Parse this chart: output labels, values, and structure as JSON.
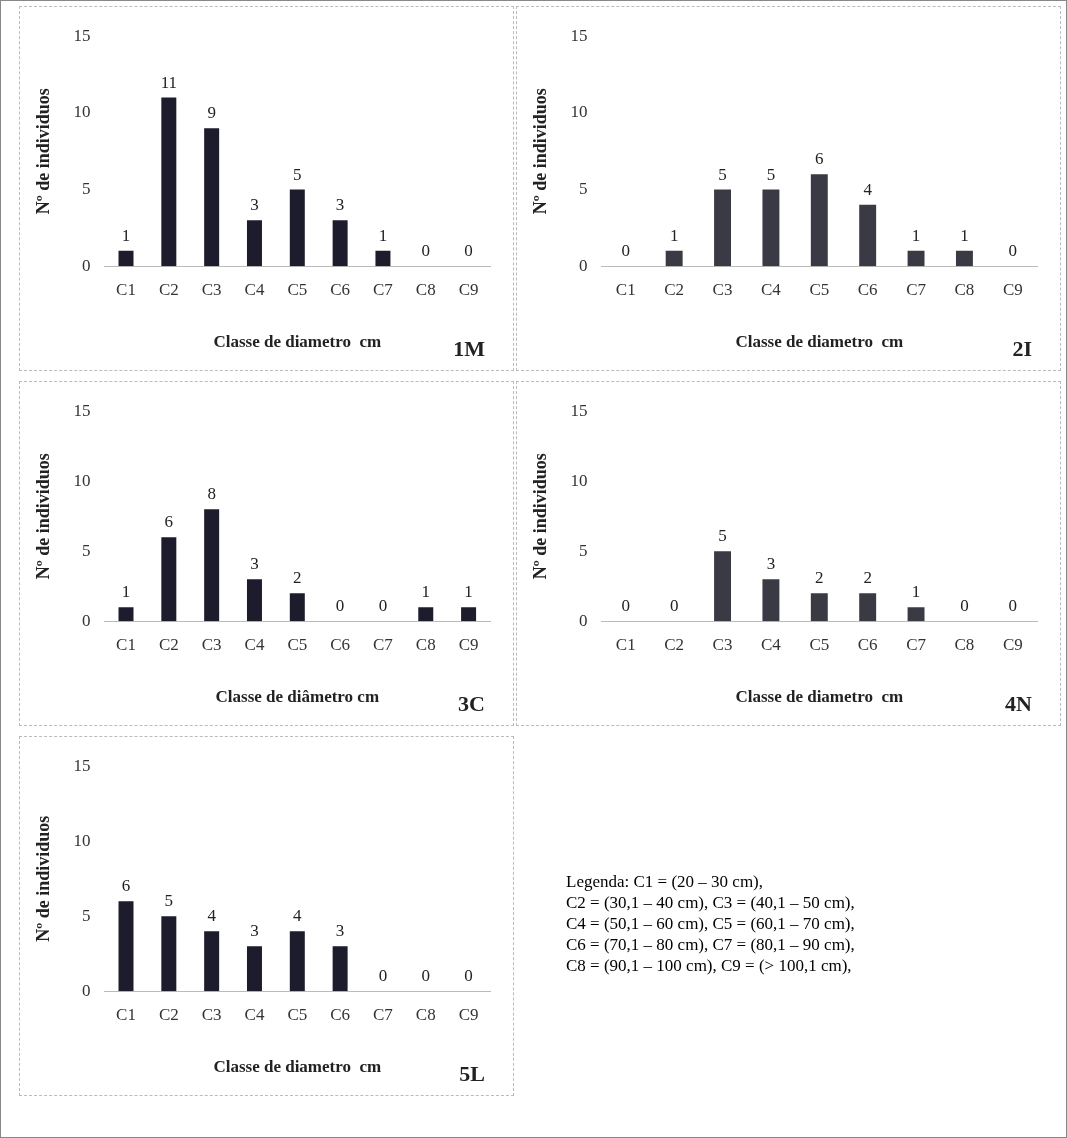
{
  "chart_data": [
    {
      "type": "bar",
      "ylabel": "Nº de individuos",
      "xlabel": "Classe de diametro  cm",
      "annotations": [
        "1M"
      ],
      "categories": [
        "C1",
        "C2",
        "C3",
        "C4",
        "C5",
        "C6",
        "C7",
        "C8",
        "C9"
      ],
      "values": [
        1,
        11,
        9,
        3,
        5,
        3,
        1,
        0,
        0
      ],
      "color": "#1c1c2c",
      "ylim": [
        0,
        15
      ],
      "yticks": [
        0,
        5,
        10,
        15
      ],
      "grid": false,
      "data_labels": true
    },
    {
      "type": "bar",
      "ylabel": "Nº de individuos",
      "xlabel": "Classe de diametro  cm",
      "annotations": [
        "2I"
      ],
      "categories": [
        "C1",
        "C2",
        "C3",
        "C4",
        "C5",
        "C6",
        "C7",
        "C8",
        "C9"
      ],
      "values": [
        0,
        1,
        5,
        5,
        6,
        4,
        1,
        1,
        0
      ],
      "color": "#3a3a44",
      "ylim": [
        0,
        15
      ],
      "yticks": [
        0,
        5,
        10,
        15
      ],
      "grid": false,
      "data_labels": true
    },
    {
      "type": "bar",
      "ylabel": "Nº de individuos",
      "xlabel": "Classe de diâmetro cm",
      "annotations": [
        "3C"
      ],
      "categories": [
        "C1",
        "C2",
        "C3",
        "C4",
        "C5",
        "C6",
        "C7",
        "C8",
        "C9"
      ],
      "values": [
        1,
        6,
        8,
        3,
        2,
        0,
        0,
        1,
        1
      ],
      "color": "#1c1c2c",
      "ylim": [
        0,
        15
      ],
      "yticks": [
        0,
        5,
        10,
        15
      ],
      "grid": false,
      "data_labels": true
    },
    {
      "type": "bar",
      "ylabel": "Nº de individuos",
      "xlabel": "Classe de diametro  cm",
      "annotations": [
        "4N"
      ],
      "categories": [
        "C1",
        "C2",
        "C3",
        "C4",
        "C5",
        "C6",
        "C7",
        "C8",
        "C9"
      ],
      "values": [
        0,
        0,
        5,
        3,
        2,
        2,
        1,
        0,
        0
      ],
      "color": "#3a3a44",
      "ylim": [
        0,
        15
      ],
      "yticks": [
        0,
        5,
        10,
        15
      ],
      "grid": false,
      "data_labels": true
    },
    {
      "type": "bar",
      "ylabel": "Nº de individuos",
      "xlabel": "Classe de diametro  cm",
      "annotations": [
        "5L"
      ],
      "categories": [
        "C1",
        "C2",
        "C3",
        "C4",
        "C5",
        "C6",
        "C7",
        "C8",
        "C9"
      ],
      "values": [
        6,
        5,
        4,
        3,
        4,
        3,
        0,
        0,
        0
      ],
      "color": "#1c1c2c",
      "ylim": [
        0,
        15
      ],
      "yticks": [
        0,
        5,
        10,
        15
      ],
      "grid": false,
      "data_labels": true
    },
    {
      "type": "other",
      "annotations": [
        "Legenda: C1 = (20 – 30 cm),",
        "C2 = (30,1 – 40 cm), C3 = (40,1 – 50 cm),",
        "C4 = (50,1 – 60 cm), C5 = (60,1 – 70 cm),",
        "C6 = (70,1 – 80 cm), C7 = (80,1 – 90 cm),",
        "C8 = (90,1 – 100 cm), C9 = (> 100,1 cm),"
      ]
    }
  ]
}
